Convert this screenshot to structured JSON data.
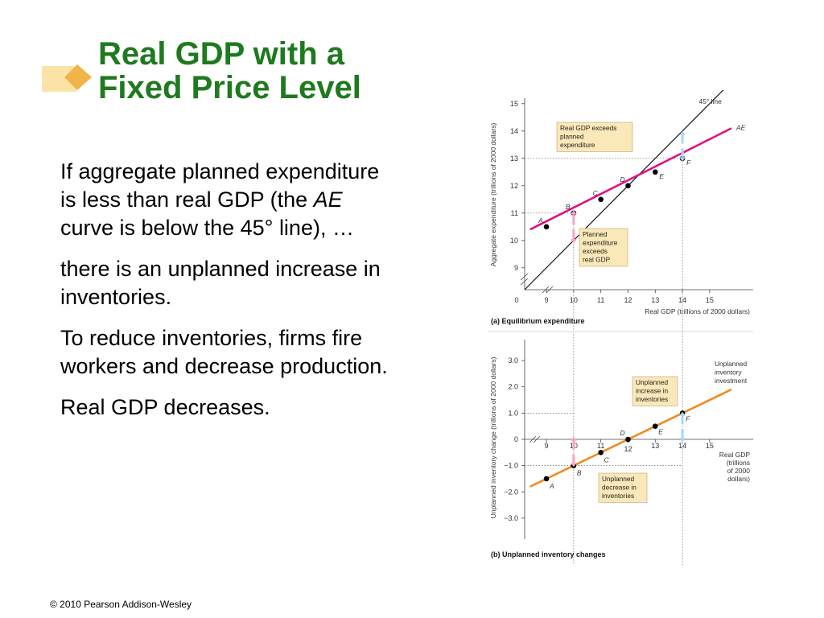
{
  "slide": {
    "title_line1": "Real GDP with a",
    "title_line2": "Fixed Price Level",
    "para1_a": "If aggregate planned expenditure is less than real GDP (the ",
    "para1_em": "AE",
    "para1_b": " curve is below the 45° line), …",
    "para2": "there is an unplanned increase in inventories.",
    "para3": "To reduce inventories, firms fire workers and decrease production.",
    "para4": "Real GDP decreases.",
    "copyright": "© 2010 Pearson Addison-Wesley"
  },
  "colors": {
    "title": "#1f7a1f",
    "ae_line": "#e0117f",
    "inventory_line": "#f08a1c",
    "callout_fill": "#fbe8b8",
    "arrow_pink": "#f4a6c4",
    "arrow_blue": "#a9d6f2",
    "deco": "#f5c76a"
  },
  "chart_data": [
    {
      "type": "line",
      "panel_label": "(a) Equilibrium expenditure",
      "xlabel": "Real GDP (trillions of 2000 dollars)",
      "ylabel": "Aggregate expenditure (trillions of 2000 dollars)",
      "x_ticks": [
        "0",
        "9",
        "10",
        "11",
        "12",
        "13",
        "14",
        "15"
      ],
      "y_ticks": [
        "9",
        "10",
        "11",
        "12",
        "13",
        "14",
        "15"
      ],
      "xlim": [
        8.2,
        16.6
      ],
      "ylim": [
        8.2,
        15.2
      ],
      "series": [
        {
          "name": "AE",
          "x": [
            8.4,
            15.8
          ],
          "y": [
            10.4,
            14.1
          ]
        },
        {
          "name": "45° line",
          "x": [
            8.2,
            15.6
          ],
          "y": [
            8.2,
            15.6
          ]
        }
      ],
      "points": [
        {
          "label": "A",
          "x": 9,
          "y": 10.5
        },
        {
          "label": "B",
          "x": 10,
          "y": 11
        },
        {
          "label": "C",
          "x": 11,
          "y": 11.5
        },
        {
          "label": "D",
          "x": 12,
          "y": 12
        },
        {
          "label": "E",
          "x": 13,
          "y": 12.5
        },
        {
          "label": "F",
          "x": 14,
          "y": 13
        }
      ],
      "annotations": [
        "Real GDP exceeds planned expenditure",
        "Planned expenditure exceeds real GDP"
      ],
      "guide_lines": {
        "x": [
          10,
          14
        ],
        "y": [
          11,
          13
        ]
      }
    },
    {
      "type": "line",
      "panel_label": "(b) Unplanned inventory changes",
      "xlabel": "Real GDP (trillions of 2000 dollars)",
      "ylabel": "Unplanned inventory change (trillions of 2000 dollars)",
      "x_ticks": [
        "9",
        "10",
        "11",
        "12",
        "13",
        "14",
        "15"
      ],
      "y_ticks": [
        "3.0",
        "2.0",
        "1.0",
        "0",
        "−1.0",
        "−2.0",
        "−3.0"
      ],
      "xlim": [
        8.2,
        16.6
      ],
      "ylim": [
        -3.8,
        3.8
      ],
      "series": [
        {
          "name": "Unplanned inventory investment",
          "x": [
            8.4,
            15.8
          ],
          "y": [
            -1.8,
            1.9
          ]
        }
      ],
      "points": [
        {
          "label": "A",
          "x": 9,
          "y": -1.5
        },
        {
          "label": "B",
          "x": 10,
          "y": -1.0
        },
        {
          "label": "C",
          "x": 11,
          "y": -0.5
        },
        {
          "label": "D",
          "x": 12,
          "y": 0
        },
        {
          "label": "E",
          "x": 13,
          "y": 0.5
        },
        {
          "label": "F",
          "x": 14,
          "y": 1.0
        }
      ],
      "annotations": [
        "Unplanned increase in inventories",
        "Unplanned decrease in inventories"
      ],
      "guide_lines": {
        "x": [
          10,
          14
        ],
        "y": [
          1.0,
          -1.0
        ]
      }
    }
  ]
}
